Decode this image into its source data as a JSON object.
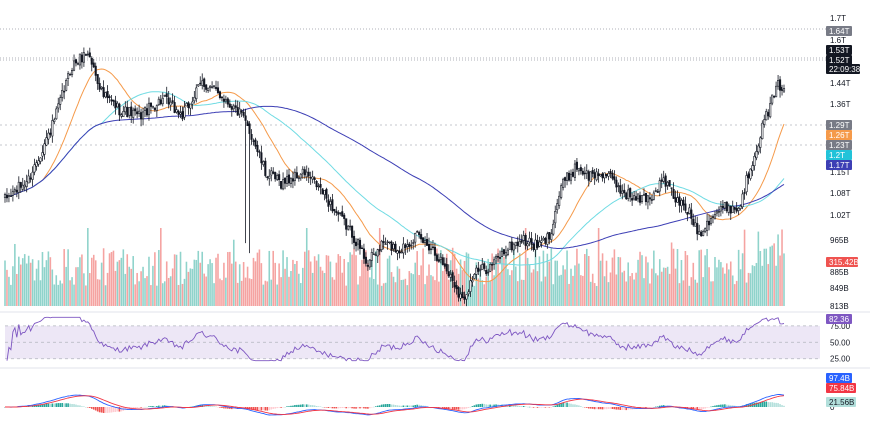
{
  "colors": {
    "up": "#26a69a",
    "down": "#ef5350",
    "candle": "#131722",
    "ma_orange": "#f59a4a",
    "ma_cyan": "#6fdbe3",
    "ma_blue": "#3d3fb5",
    "rsi_line": "#7e57c2",
    "rsi_band": "#ede7f6",
    "macd_line": "#2962ff",
    "signal_line": "#f23645",
    "hist_up": "#26a69a",
    "hist_up_light": "#b2dfdb",
    "hist_down": "#ef5350",
    "hist_down_light": "#ffcdd2",
    "grid": "#e0e3eb"
  },
  "price_axis": {
    "ticks": [
      "1.7T",
      "1.6T",
      "1.44T",
      "1.36T",
      "1.15T",
      "1.08T",
      "1.02T",
      "965B",
      "885B",
      "849B",
      "813B"
    ],
    "tick_values": [
      1.7,
      1.6,
      1.44,
      1.36,
      1.15,
      1.08,
      1.02,
      0.965,
      0.885,
      0.849,
      0.813
    ]
  },
  "badges": {
    "high": {
      "label": "1.64T",
      "value": 1.64,
      "color": "#787b86"
    },
    "last": {
      "label": "1.53T",
      "value": 1.53,
      "color": "#131722"
    },
    "current": {
      "label": "1.52T",
      "value": 1.52,
      "color": "#131722"
    },
    "countdown": {
      "label": "22:09:38",
      "color": "#131722"
    },
    "ma1": {
      "label": "1.29T",
      "value": 1.29,
      "color": "#787b86"
    },
    "ma2": {
      "label": "1.26T",
      "value": 1.26,
      "color": "#f59a4a"
    },
    "ma3": {
      "label": "1.23T",
      "value": 1.23,
      "color": "#787b86"
    },
    "ma4": {
      "label": "1.2T",
      "value": 1.2,
      "color": "#22c3d9"
    },
    "ma5": {
      "label": "1.17T",
      "value": 1.17,
      "color": "#3d3fb5"
    },
    "volume": {
      "label": "315.42B",
      "value": 315.42,
      "color": "#ef5350"
    }
  },
  "rsi": {
    "ticks": [
      "75.00",
      "50.00",
      "25.00"
    ],
    "tick_values": [
      75,
      50,
      25
    ],
    "badge": {
      "label": "82.36",
      "value": 82.36,
      "color": "#7e57c2"
    }
  },
  "macd": {
    "badges": [
      {
        "label": "97.4B",
        "value": 97.4,
        "color": "#2962ff"
      },
      {
        "label": "75.84B",
        "value": 75.84,
        "color": "#f23645"
      },
      {
        "label": "21.56B",
        "value": 21.56,
        "color": "#b2dfdb",
        "text_color": "#131722"
      }
    ],
    "zero_label": "0"
  },
  "chart_data": {
    "type": "candlestick",
    "price_anchors": [
      [
        0,
        1.18
      ],
      [
        12,
        1.24
      ],
      [
        24,
        1.4
      ],
      [
        34,
        1.58
      ],
      [
        42,
        1.62
      ],
      [
        50,
        1.49
      ],
      [
        58,
        1.45
      ],
      [
        68,
        1.43
      ],
      [
        80,
        1.48
      ],
      [
        90,
        1.43
      ],
      [
        100,
        1.53
      ],
      [
        110,
        1.49
      ],
      [
        120,
        1.43
      ],
      [
        126,
        1.36
      ],
      [
        132,
        1.26
      ],
      [
        140,
        1.23
      ],
      [
        152,
        1.26
      ],
      [
        160,
        1.21
      ],
      [
        168,
        1.14
      ],
      [
        176,
        1.08
      ],
      [
        184,
        0.99
      ],
      [
        192,
        1.05
      ],
      [
        200,
        1.03
      ],
      [
        208,
        1.07
      ],
      [
        216,
        1.04
      ],
      [
        222,
        0.99
      ],
      [
        228,
        0.93
      ],
      [
        232,
        0.88
      ],
      [
        238,
        0.96
      ],
      [
        246,
        0.98
      ],
      [
        254,
        1.03
      ],
      [
        262,
        1.06
      ],
      [
        270,
        1.04
      ],
      [
        276,
        1.07
      ],
      [
        282,
        1.22
      ],
      [
        290,
        1.28
      ],
      [
        296,
        1.25
      ],
      [
        304,
        1.26
      ],
      [
        312,
        1.21
      ],
      [
        320,
        1.18
      ],
      [
        328,
        1.19
      ],
      [
        334,
        1.24
      ],
      [
        340,
        1.18
      ],
      [
        346,
        1.15
      ],
      [
        352,
        1.08
      ],
      [
        358,
        1.13
      ],
      [
        366,
        1.16
      ],
      [
        372,
        1.15
      ],
      [
        380,
        1.32
      ],
      [
        386,
        1.43
      ],
      [
        392,
        1.52
      ],
      [
        395,
        1.52
      ]
    ],
    "n_candles": 396,
    "volume_range": [
      813,
      965
    ],
    "rsi_range": [
      20,
      90
    ],
    "series": [
      {
        "kind": "ma",
        "period": 20,
        "color_key": "ma_orange"
      },
      {
        "kind": "ma",
        "period": 50,
        "color_key": "ma_cyan"
      },
      {
        "kind": "ma",
        "period": 120,
        "color_key": "ma_blue"
      }
    ]
  }
}
